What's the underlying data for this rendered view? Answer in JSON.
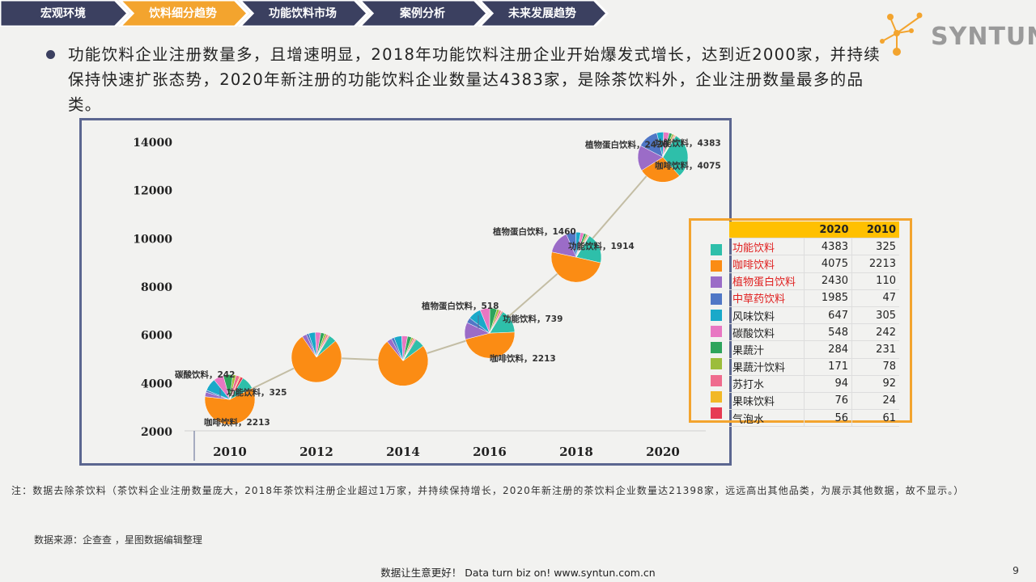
{
  "nav": {
    "items": [
      "宏观环境",
      "饮料细分趋势",
      "功能饮料市场",
      "案例分析",
      "未来发展趋势"
    ],
    "active_index": 1,
    "color_default": "#3b4060",
    "color_active": "#f3a42e"
  },
  "logo": {
    "text": "SYNTUN",
    "icon": "molecule-logo-icon"
  },
  "bullet_text": "功能饮料企业注册数量多，且增速明显，2018年功能饮料注册企业开始爆发式增长，达到近2000家，并持续保持快速扩张态势，2020年新注册的功能饮料企业数量达4383家，是除茶饮料外，企业注册数量最多的品类。",
  "chart_data": {
    "type": "line",
    "x": [
      2010,
      2012,
      2014,
      2016,
      2018,
      2020
    ],
    "y_total": [
      3300,
      5050,
      4900,
      6050,
      9200,
      13350
    ],
    "ylim": [
      2000,
      14000
    ],
    "yticks": [
      2000,
      4000,
      6000,
      8000,
      10000,
      12000,
      14000
    ],
    "grid": false,
    "line_color": "#c3bda4",
    "pie_categories": [
      "功能饮料",
      "咖啡饮料",
      "植物蛋白饮料",
      "中草药饮料",
      "风味饮料",
      "碳酸饮料",
      "果蔬汁",
      "果蔬汁饮料",
      "苏打水",
      "果味饮料",
      "气泡水"
    ],
    "pie_colors": [
      "#2ebfaa",
      "#fb8c14",
      "#9b6cc7",
      "#5077c6",
      "#1aa9c9",
      "#e877c2",
      "#2ea45c",
      "#9cbd3c",
      "#ef6b8e",
      "#f2b826",
      "#e63b53"
    ],
    "pies": [
      {
        "x": 2010,
        "values": [
          325,
          2213,
          110,
          47,
          305,
          242,
          231,
          78,
          92,
          24,
          61
        ]
      },
      {
        "x": 2012,
        "values": [
          250,
          3900,
          150,
          80,
          220,
          180,
          120,
          70,
          60,
          20,
          30
        ]
      },
      {
        "x": 2014,
        "values": [
          300,
          3700,
          160,
          90,
          250,
          190,
          130,
          60,
          50,
          20,
          30
        ]
      },
      {
        "x": 2016,
        "values": [
          739,
          2213,
          518,
          160,
          400,
          300,
          220,
          80,
          60,
          20,
          30
        ]
      },
      {
        "x": 2018,
        "values": [
          1914,
          4800,
          1460,
          600,
          300,
          200,
          150,
          100,
          60,
          30,
          30
        ]
      },
      {
        "x": 2020,
        "values": [
          4383,
          4075,
          2430,
          1985,
          647,
          548,
          284,
          171,
          94,
          76,
          56
        ]
      }
    ],
    "annotations": [
      {
        "text": "碳酸饮料，242",
        "x": 2010,
        "anchor": "upper-left"
      },
      {
        "text": "功能饮料，325",
        "x": 2010,
        "anchor": "right"
      },
      {
        "text": "咖啡饮料，2213",
        "x": 2010,
        "anchor": "lower-right"
      },
      {
        "text": "植物蛋白饮料，518",
        "x": 2016,
        "anchor": "upper-left"
      },
      {
        "text": "功能饮料，739",
        "x": 2016,
        "anchor": "right"
      },
      {
        "text": "咖啡饮料，2213",
        "x": 2016,
        "anchor": "lower-right"
      },
      {
        "text": "植物蛋白饮料，1460",
        "x": 2018,
        "anchor": "upper-left"
      },
      {
        "text": "功能饮料，1914",
        "x": 2018,
        "anchor": "right"
      },
      {
        "text": "植物蛋白饮料，2430",
        "x": 2020,
        "anchor": "left"
      },
      {
        "text": "功能饮料，4383",
        "x": 2020,
        "anchor": "right"
      },
      {
        "text": "咖啡饮料，4075",
        "x": 2020,
        "anchor": "lower-right"
      }
    ]
  },
  "table": {
    "headers": [
      "",
      "2020",
      "2010"
    ],
    "rows": [
      {
        "name": "功能饮料",
        "v2020": "4383",
        "v2010": "325",
        "highlight": true
      },
      {
        "name": "咖啡饮料",
        "v2020": "4075",
        "v2010": "2213",
        "highlight": true
      },
      {
        "name": "植物蛋白饮料",
        "v2020": "2430",
        "v2010": "110",
        "highlight": true
      },
      {
        "name": "中草药饮料",
        "v2020": "1985",
        "v2010": "47",
        "highlight": true
      },
      {
        "name": "风味饮料",
        "v2020": "647",
        "v2010": "305",
        "highlight": false
      },
      {
        "name": "碳酸饮料",
        "v2020": "548",
        "v2010": "242",
        "highlight": false
      },
      {
        "name": "果蔬汁",
        "v2020": "284",
        "v2010": "231",
        "highlight": false
      },
      {
        "name": "果蔬汁饮料",
        "v2020": "171",
        "v2010": "78",
        "highlight": false
      },
      {
        "name": "苏打水",
        "v2020": "94",
        "v2010": "92",
        "highlight": false
      },
      {
        "name": "果味饮料",
        "v2020": "76",
        "v2010": "24",
        "highlight": false
      },
      {
        "name": "气泡水",
        "v2020": "56",
        "v2010": "61",
        "highlight": false
      }
    ],
    "highlight_color": "#e02020",
    "header_color": "#ffc000"
  },
  "note": "注：数据去除茶饮料（茶饮料企业注册数量庞大，2018年茶饮料注册企业超过1万家，并持续保持增长，2020年新注册的茶饮料企业数量达21398家，远远高出其他品类，为展示其他数据，故不显示。）",
  "source": "数据来源：企查查 ，星图数据编辑整理",
  "footer": "数据让生意更好！ Data turn biz on!  www.syntun.com.cn",
  "page_number": "9"
}
